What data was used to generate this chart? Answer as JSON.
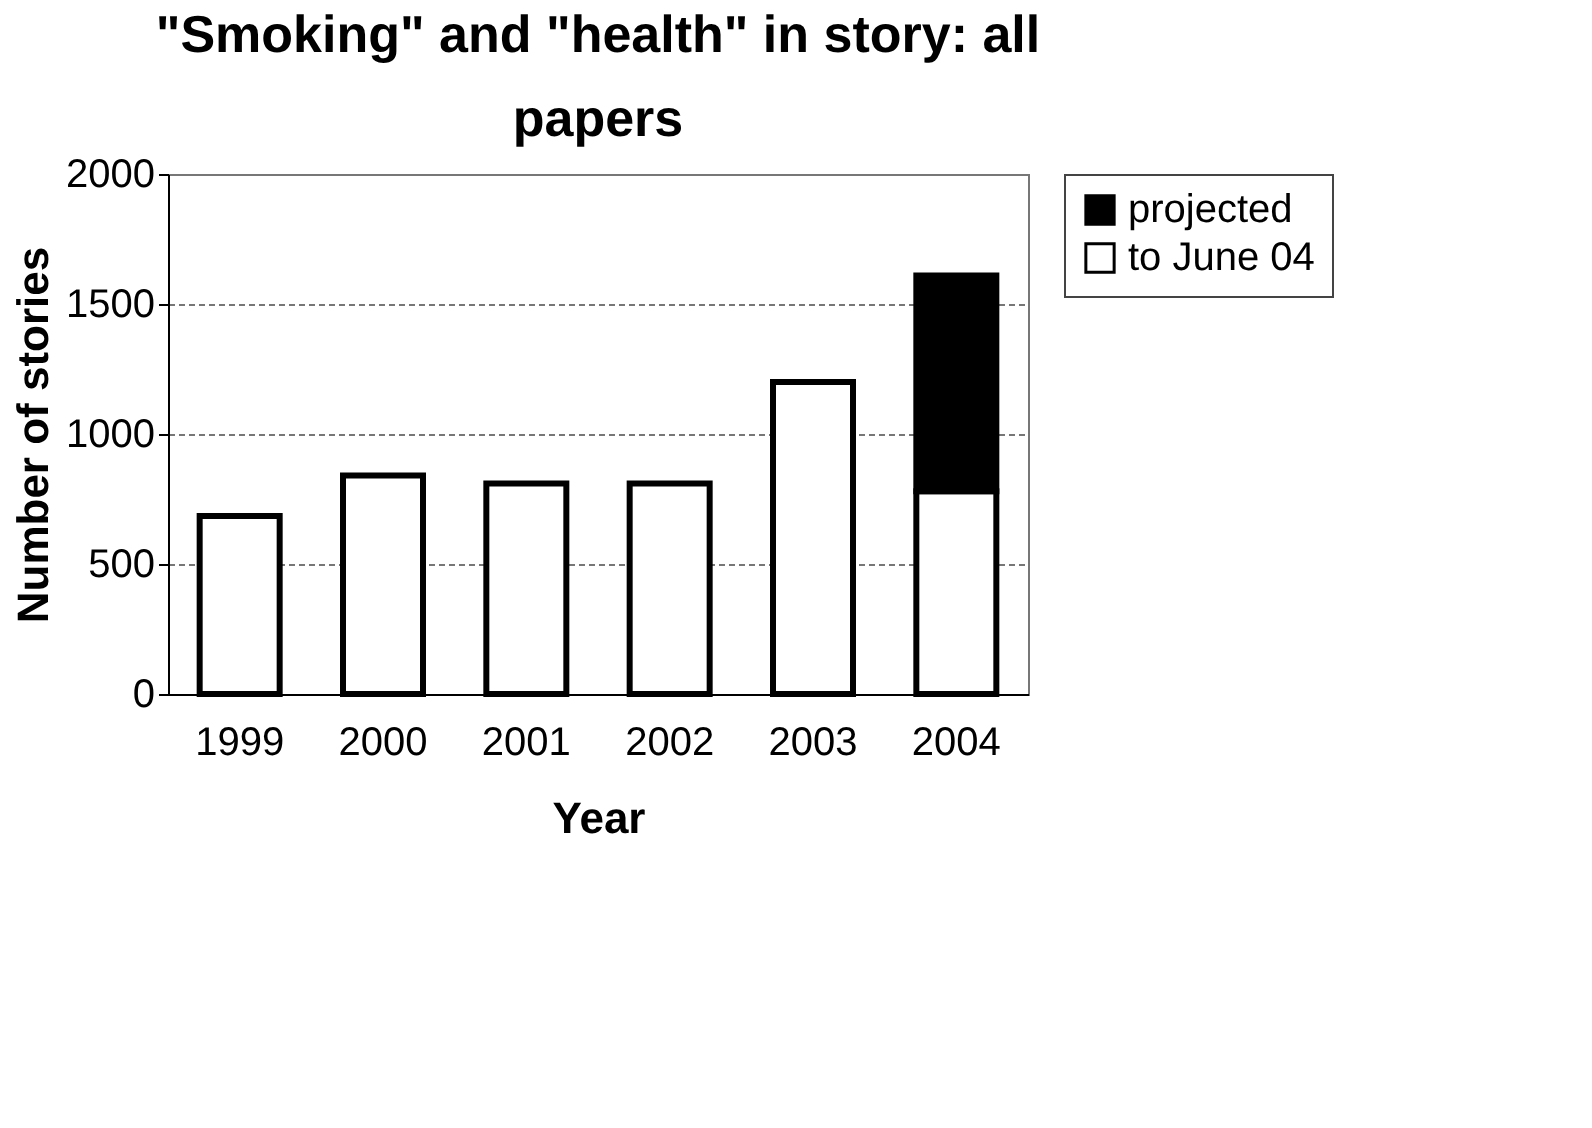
{
  "chart_data": {
    "type": "bar",
    "title": "\"Smoking\" and \"health\" in story: all papers",
    "xlabel": "Year",
    "ylabel": "Number of stories",
    "categories": [
      "1999",
      "2000",
      "2001",
      "2002",
      "2003",
      "2004"
    ],
    "stacked": true,
    "series": [
      {
        "name": "to June 04",
        "color": "#ffffff",
        "values": [
          685,
          840,
          810,
          810,
          1200,
          780
        ]
      },
      {
        "name": "projected",
        "color": "#000000",
        "values": [
          null,
          null,
          null,
          null,
          null,
          830
        ]
      }
    ],
    "ylim": [
      0,
      2000
    ],
    "yticks": [
      0,
      500,
      1000,
      1500,
      2000
    ],
    "grid": "y",
    "legend": "right"
  }
}
